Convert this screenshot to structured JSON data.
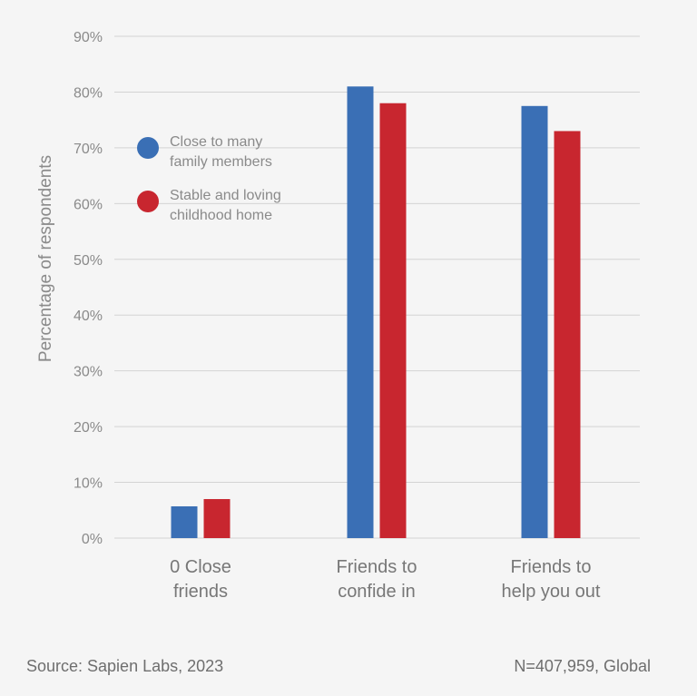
{
  "chart_data": {
    "type": "bar",
    "title": "",
    "xlabel": "",
    "ylabel": "Percentage of respondents",
    "ylim": [
      0,
      90
    ],
    "yticks": [
      "0%",
      "10%",
      "20%",
      "30%",
      "40%",
      "50%",
      "60%",
      "70%",
      "80%",
      "90%"
    ],
    "grid": true,
    "legend_position": "top-left",
    "categories": [
      [
        "0 Close",
        "friends"
      ],
      [
        "Friends to",
        "confide in"
      ],
      [
        "Friends to",
        "help you out"
      ]
    ],
    "series": [
      {
        "name": [
          "Close to many",
          "family members"
        ],
        "color": "#3a6fb5",
        "values": [
          5.7,
          81,
          77.5
        ]
      },
      {
        "name": [
          "Stable and loving",
          "childhood home"
        ],
        "color": "#c8262f",
        "values": [
          7,
          78,
          73
        ]
      }
    ]
  },
  "footer": {
    "source": "Source: Sapien Labs, 2023",
    "sample": "N=407,959, Global"
  }
}
